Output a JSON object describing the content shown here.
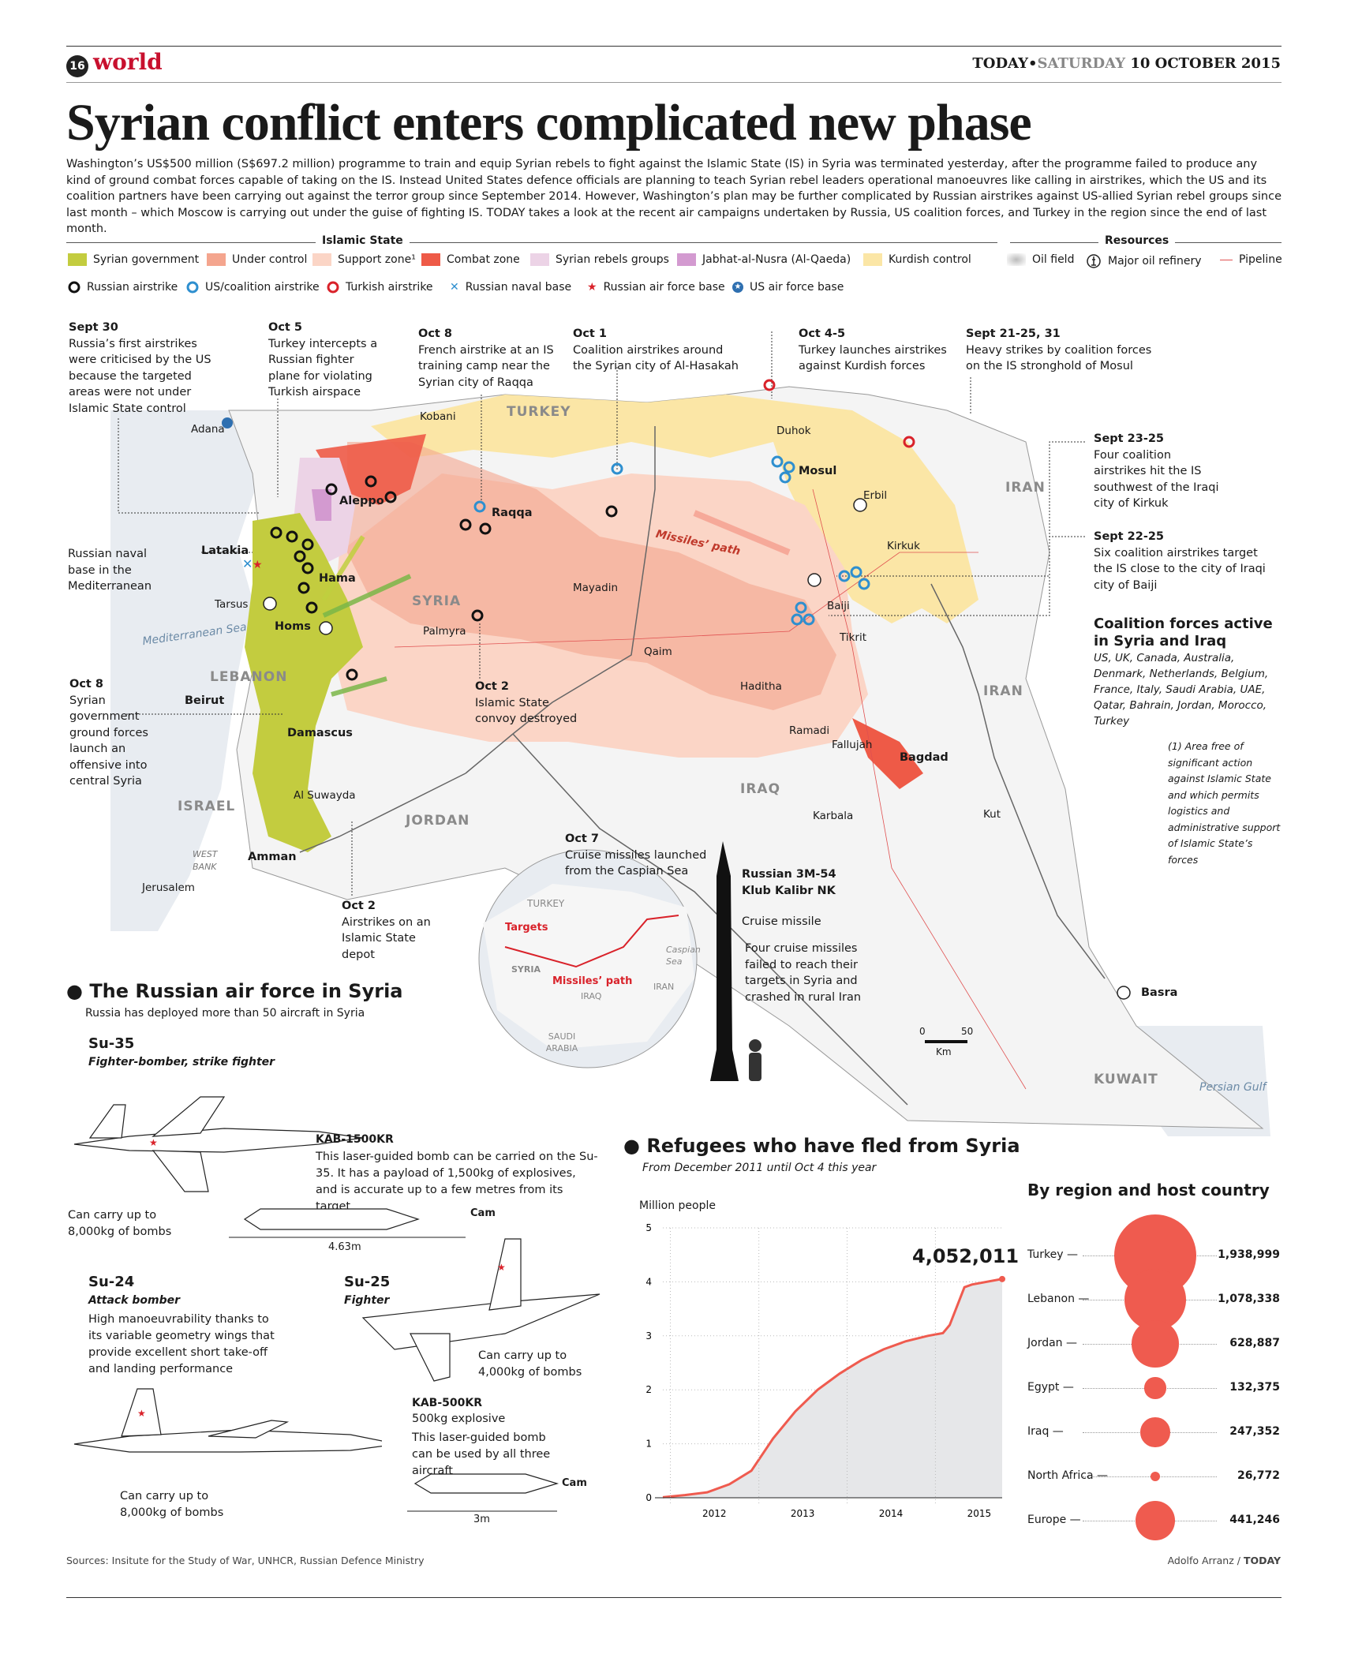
{
  "header": {
    "page_number": "16",
    "section": "world",
    "paper": "TODAY",
    "separator": "•",
    "day": "SATURDAY",
    "date": "10 OCTOBER 2015"
  },
  "title": "Syrian conflict enters complicated new phase",
  "intro": "Washington’s US$500 million (S$697.2 million) programme to train and equip Syrian rebels to fight against the Islamic State (IS) in Syria was terminated yesterday, after the programme failed to produce any kind of ground combat forces capable of taking on the IS. Instead United States defence officials are planning to teach Syrian rebel leaders operational manoeuvres like calling in airstrikes, which the US and its coalition partners have been carrying out against the terror group since September 2014. However, Washington’s plan may be further complicated by Russian airstrikes against US-allied Syrian rebel groups since last month – which Moscow is carrying out under the guise of fighting IS. TODAY takes a look at the recent air campaigns undertaken by Russia, US coalition forces, and Turkey in the region since the end of last month.",
  "legend": {
    "islamic_state_heading": "Islamic State",
    "resources_heading": "Resources",
    "areas": [
      {
        "label": "Syrian government",
        "color": "#c3cc3f"
      },
      {
        "label": "Under control",
        "color": "#f4a58e"
      },
      {
        "label": "Support zone¹",
        "color": "#fbd5c6"
      },
      {
        "label": "Combat zone",
        "color": "#ee5a47"
      },
      {
        "label": "Syrian rebels groups",
        "color": "#ecd3e6"
      },
      {
        "label": "Jabhat-al-Nusra (Al-Qaeda)",
        "color": "#d39ad0"
      },
      {
        "label": "Kurdish control",
        "color": "#fbe6a6"
      }
    ],
    "resources": [
      {
        "label": "Oil field",
        "icon": "oil-field-icon"
      },
      {
        "label": "Major oil refinery",
        "icon": "refinery-icon"
      },
      {
        "label": "Pipeline",
        "icon": "pipeline-icon"
      }
    ],
    "markers": [
      {
        "label": "Russian airstrike",
        "icon": "russian-airstrike-icon",
        "color": "#111111"
      },
      {
        "label": "US/coalition airstrike",
        "icon": "coalition-airstrike-icon",
        "color": "#2e8fcf"
      },
      {
        "label": "Turkish airstrike",
        "icon": "turkish-airstrike-icon",
        "color": "#d9222a"
      },
      {
        "label": "Russian naval base",
        "icon": "naval-base-icon",
        "color": "#2e8fcf"
      },
      {
        "label": "Russian air force base",
        "icon": "air-base-icon",
        "color": "#d9222a"
      },
      {
        "label": "US air force base",
        "icon": "us-air-base-icon",
        "color": "#2e6fb0"
      }
    ]
  },
  "annotations": {
    "sept30": {
      "date": "Sept 30",
      "text": "Russia’s first airstrikes were criticised by the US because the targeted areas were not under Islamic State control"
    },
    "oct5": {
      "date": "Oct 5",
      "text": "Turkey intercepts a Russian fighter plane for violating Turkish airspace"
    },
    "oct8a": {
      "date": "Oct 8",
      "text": "French airstrike at an IS training camp near the Syrian city of Raqqa"
    },
    "oct1": {
      "date": "Oct 1",
      "text": "Coalition airstrikes around the Syrian city of Al-Hasakah"
    },
    "oct45": {
      "date": "Oct 4-5",
      "text": "Turkey launches airstrikes against Kurdish forces"
    },
    "sept2131": {
      "date": "Sept 21-25, 31",
      "text": "Heavy strikes by coalition forces on the IS stronghold of Mosul"
    },
    "sept2325": {
      "date": "Sept 23-25",
      "text": "Four coalition airstrikes hit the IS southwest of the Iraqi city of Kirkuk"
    },
    "sept2225": {
      "date": "Sept 22-25",
      "text": "Six coalition airstrikes target the IS close to the city of Iraqi city of Baiji"
    },
    "naval": {
      "text": "Russian naval base in the Mediterranean"
    },
    "oct8b": {
      "date": "Oct 8",
      "text": "Syrian government ground forces launch an offensive into central Syria"
    },
    "oct2a": {
      "date": "Oct 2",
      "text": "Islamic State convoy destroyed"
    },
    "oct2b": {
      "date": "Oct 2",
      "text": "Airstrikes on an Islamic State depot"
    },
    "oct7": {
      "date": "Oct 7",
      "text": "Cruise missiles launched from the Caspian Sea"
    }
  },
  "coalition": {
    "title": "Coalition forces active in Syria and Iraq",
    "members": "US, UK, Canada, Australia, Denmark, Netherlands, Belgium, France, Italy, Saudi Arabia, UAE, Qatar, Bahrain, Jordan, Morocco, Turkey"
  },
  "footnote": "(1) Area free of significant action against Islamic State and which permits logistics and administrative support of Islamic State’s forces",
  "map": {
    "countries": [
      "TURKEY",
      "SYRIA",
      "IRAQ",
      "IRAN",
      "IRAN",
      "LEBANON",
      "ISRAEL",
      "JORDAN",
      "KUWAIT"
    ],
    "west_bank": "WEST BANK",
    "sea_med": "Mediterranean Sea",
    "sea_gulf": "Persian Gulf",
    "missiles_path": "Missiles’ path",
    "cities": {
      "adana": "Adana",
      "kobani": "Kobani",
      "aleppo": "Aleppo",
      "latakia": "Latakia",
      "raqqa": "Raqqa",
      "hama": "Hama",
      "tarsus": "Tarsus",
      "homs": "Homs",
      "palmyra": "Palmyra",
      "mayadin": "Mayadin",
      "beirut": "Beirut",
      "damascus": "Damascus",
      "alsuwayda": "Al Suwayda",
      "amman": "Amman",
      "jerusalem": "Jerusalem",
      "duhok": "Duhok",
      "mosul": "Mosul",
      "erbil": "Erbil",
      "kirkuk": "Kirkuk",
      "baiji": "Baiji",
      "tikrit": "Tikrit",
      "qaim": "Qaim",
      "haditha": "Haditha",
      "ramadi": "Ramadi",
      "fallujah": "Fallujah",
      "bagdad": "Bagdad",
      "karbala": "Karbala",
      "kut": "Kut",
      "basra": "Basra"
    },
    "scale": {
      "zero": "0",
      "fifty": "50",
      "unit": "Km"
    }
  },
  "inset": {
    "turkey": "TURKEY",
    "syria": "SYRIA",
    "iraq": "IRAQ",
    "iran": "IRAN",
    "saudi": "SAUDI ARABIA",
    "caspian": "Caspian Sea",
    "targets": "Targets",
    "path": "Missiles’ path"
  },
  "missile": {
    "name": "Russian 3M-54 Klub Kalibr NK",
    "type": "Cruise missile",
    "note": "Four cruise missiles failed to reach their targets in Syria and crashed in rural Iran"
  },
  "airforce": {
    "title": "The Russian air force in Syria",
    "subtitle": "Russia has deployed more than 50 aircraft in Syria",
    "su35": {
      "name": "Su-35",
      "role": "Fighter-bomber, strike fighter",
      "bombs": "Can carry up to 8,000kg of bombs"
    },
    "kab1500": {
      "name": "KAB-1500KR",
      "text": "This laser-guided bomb can be carried on the Su-35. It has a payload of 1,500kg of explosives, and is accurate up to a few metres from its target",
      "cam": "Cam",
      "length": "4.63m"
    },
    "su24": {
      "name": "Su-24",
      "role": "Attack bomber",
      "text": "High manoeuvrability thanks to its variable geometry wings that provide excellent short take-off and landing performance",
      "bombs": "Can carry up to 8,000kg of bombs"
    },
    "su25": {
      "name": "Su-25",
      "role": "Fighter",
      "bombs": "Can carry up to 4,000kg of bombs"
    },
    "kab500": {
      "name": "KAB-500KR",
      "sub": "500kg explosive",
      "text": "This laser-guided bomb can be used by all three aircraft",
      "cam": "Cam",
      "length": "3m"
    }
  },
  "refugees": {
    "title": "Refugees who have fled from Syria",
    "subtitle": "From December 2011 until Oct 4 this year",
    "region_title": "By region and host country"
  },
  "chart_data": [
    {
      "type": "area",
      "title": "",
      "ylabel": "Million people",
      "xlabel": "",
      "x": [
        "2011-12",
        "2012-03",
        "2012-06",
        "2012-09",
        "2012-12",
        "2013-03",
        "2013-06",
        "2013-09",
        "2013-12",
        "2014-03",
        "2014-06",
        "2014-09",
        "2014-12",
        "2015-02",
        "2015-03",
        "2015-05",
        "2015-06",
        "2015-10"
      ],
      "values": [
        0.01,
        0.05,
        0.1,
        0.25,
        0.5,
        1.1,
        1.6,
        2.0,
        2.3,
        2.55,
        2.75,
        2.9,
        3.0,
        3.05,
        3.2,
        3.9,
        3.95,
        4.052011
      ],
      "ylim": [
        0,
        5
      ],
      "yticks": [
        "0",
        "1",
        "2",
        "3",
        "4",
        "5"
      ],
      "xticks": [
        "2012",
        "2013",
        "2014",
        "2015"
      ],
      "annotation": "4,052,011",
      "grid": true
    },
    {
      "type": "bubble",
      "title": "By region and host country",
      "categories": [
        "Turkey",
        "Lebanon",
        "Jordan",
        "Egypt",
        "Iraq",
        "North Africa",
        "Europe"
      ],
      "values": [
        1938999,
        1078338,
        628887,
        132375,
        247352,
        26772,
        441246
      ],
      "labels": [
        "1,938,999",
        "1,078,338",
        "628,887",
        "132,375",
        "247,352",
        "26,772",
        "441,246"
      ],
      "color": "#ef5b4f"
    }
  ],
  "footer": {
    "sources": "Sources: Insitute for the Study of War, UNHCR, Russian Defence Ministry",
    "credit": "Adolfo Arranz",
    "credit_sep": " / ",
    "credit_paper": "TODAY"
  }
}
